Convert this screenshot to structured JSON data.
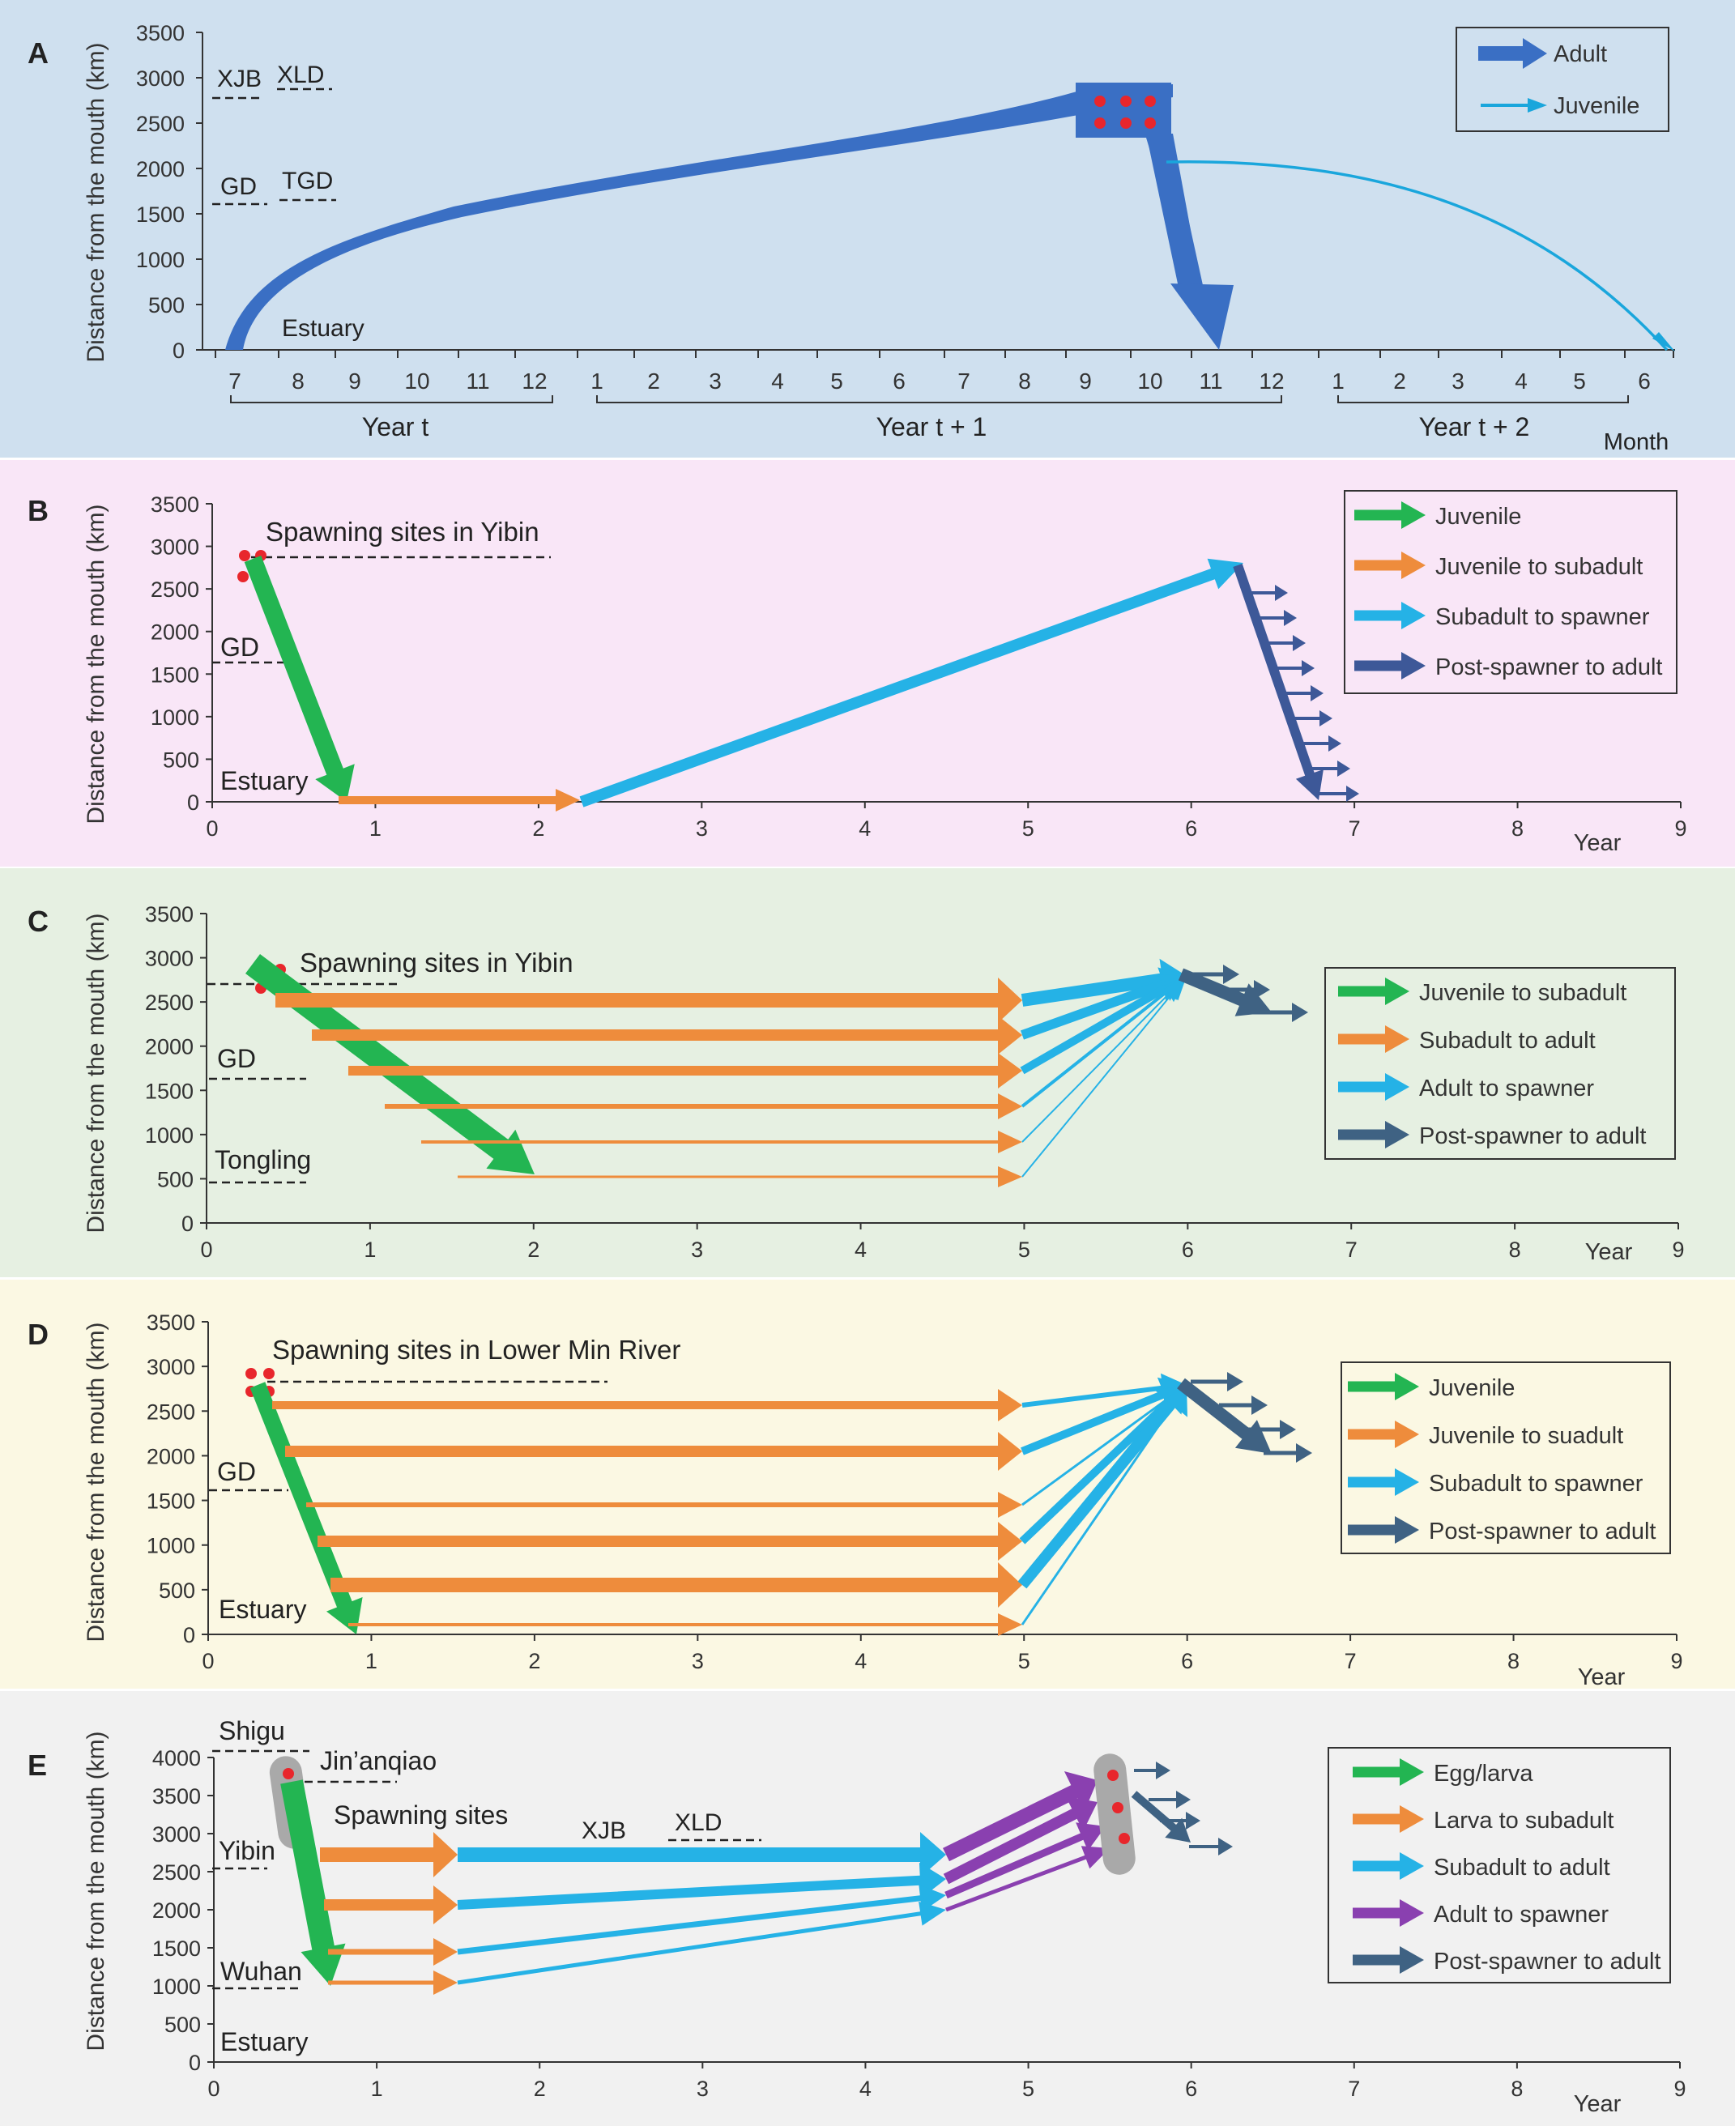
{
  "figure": {
    "y_axis_label": "Distance from the mouth  (km)",
    "colors": {
      "bg_A": "#cfe0ef",
      "bg_B": "#f9e6f7",
      "bg_C": "#e6f0e2",
      "bg_D": "#fbf8e3",
      "bg_E": "#f1f1f1",
      "adult": "#3a6fc4",
      "juvenile_light": "#1aa6dc",
      "green": "#23b552",
      "orange": "#ee8c3c",
      "cyan": "#25b2e6",
      "navy": "#3d5898",
      "slate": "#3f6283",
      "purple": "#8a40b0",
      "red_dot": "#e8262c",
      "grey_band": "#a9a9a9"
    }
  },
  "panels": {
    "A": {
      "letter": "A",
      "y_ticks": [
        "0",
        "500",
        "1000",
        "1500",
        "2000",
        "2500",
        "3000",
        "3500"
      ],
      "month_ticks": [
        "7",
        "8",
        "9",
        "10",
        "11",
        "12",
        "1",
        "2",
        "3",
        "4",
        "5",
        "6",
        "7",
        "8",
        "9",
        "10",
        "11",
        "12",
        "1",
        "2",
        "3",
        "4",
        "5",
        "6"
      ],
      "year_groups": [
        "Year t",
        "Year t + 1",
        "Year t + 2"
      ],
      "x_unit": "Month",
      "site_labels": [
        "XJB",
        "XLD",
        "GD",
        "TGD"
      ],
      "place_labels": [
        "Estuary"
      ],
      "legend": [
        "Adult",
        "Juvenile"
      ]
    },
    "B": {
      "letter": "B",
      "y_ticks": [
        "0",
        "500",
        "1000",
        "1500",
        "2000",
        "2500",
        "3000",
        "3500"
      ],
      "x_ticks": [
        "0",
        "1",
        "2",
        "3",
        "4",
        "5",
        "6",
        "7",
        "8",
        "9"
      ],
      "x_unit": "Year",
      "site_label": "Spawning sites in Yibin",
      "place_labels": [
        "GD",
        "Estuary"
      ],
      "legend": [
        "Juvenile",
        "Juvenile to subadult",
        "Subadult to spawner",
        "Post-spawner to adult"
      ]
    },
    "C": {
      "letter": "C",
      "y_ticks": [
        "0",
        "500",
        "1000",
        "1500",
        "2000",
        "2500",
        "3000",
        "3500"
      ],
      "x_ticks": [
        "0",
        "1",
        "2",
        "3",
        "4",
        "5",
        "6",
        "7",
        "8",
        "9"
      ],
      "x_unit": "Year",
      "site_label": "Spawning sites in Yibin",
      "place_labels": [
        "GD",
        "Tongling"
      ],
      "legend": [
        "Juvenile to subadult",
        "Subadult to adult",
        "Adult to spawner",
        "Post-spawner to adult"
      ]
    },
    "D": {
      "letter": "D",
      "y_ticks": [
        "0",
        "500",
        "1000",
        "1500",
        "2000",
        "2500",
        "3000",
        "3500"
      ],
      "x_ticks": [
        "0",
        "1",
        "2",
        "3",
        "4",
        "5",
        "6",
        "7",
        "8",
        "9"
      ],
      "x_unit": "Year",
      "site_label": "Spawning sites in Lower Min River",
      "place_labels": [
        "GD",
        "Estuary"
      ],
      "legend": [
        "Juvenile",
        "Juvenile to suadult",
        "Subadult to spawner",
        "Post-spawner to adult"
      ]
    },
    "E": {
      "letter": "E",
      "y_ticks": [
        "0",
        "500",
        "1000",
        "1500",
        "2000",
        "2500",
        "3000",
        "3500",
        "4000"
      ],
      "x_ticks": [
        "0",
        "1",
        "2",
        "3",
        "4",
        "5",
        "6",
        "7",
        "8",
        "9"
      ],
      "x_unit": "Year",
      "place_labels": [
        "Shigu",
        "Jin’anqiao",
        "Spawning sites",
        "XJB",
        "XLD",
        "Yibin",
        "Wuhan",
        "Estuary"
      ],
      "legend": [
        "Egg/larva",
        "Larva to subadult",
        "Subadult to adult",
        "Adult to spawner",
        "Post-spawner to adult"
      ]
    }
  }
}
